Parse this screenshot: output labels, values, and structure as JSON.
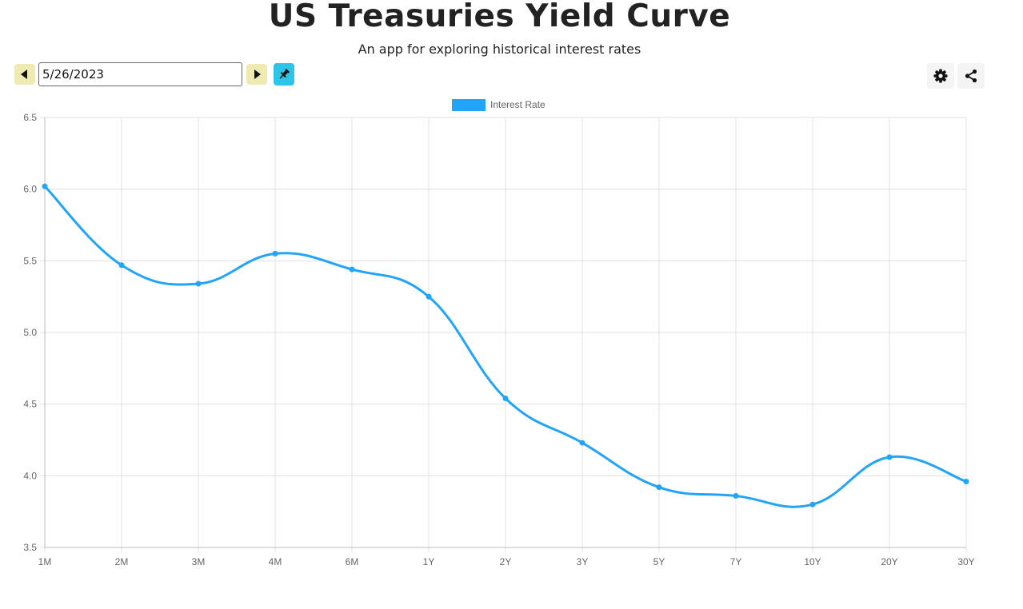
{
  "header": {
    "title": "US Treasuries Yield Curve",
    "subtitle": "An app for exploring historical interest rates"
  },
  "controls": {
    "date_value": "5/26/2023",
    "prev_icon": "triangle-left-icon",
    "next_icon": "triangle-right-icon",
    "pin_icon": "pin-icon",
    "settings_icon": "gear-icon",
    "share_icon": "share-icon",
    "pin_color": "#2dc4e8",
    "nav_color": "#efe9b2"
  },
  "chart_data": {
    "type": "line",
    "legend": {
      "position": "top-center",
      "labels": [
        "Interest Rate"
      ]
    },
    "categories": [
      "1M",
      "2M",
      "3M",
      "4M",
      "6M",
      "1Y",
      "2Y",
      "3Y",
      "5Y",
      "7Y",
      "10Y",
      "20Y",
      "30Y"
    ],
    "series": [
      {
        "name": "Interest Rate",
        "color": "#22a4f8",
        "values": [
          6.02,
          5.47,
          5.34,
          5.55,
          5.44,
          5.25,
          4.54,
          4.23,
          3.92,
          3.86,
          3.8,
          4.13,
          3.96
        ]
      }
    ],
    "ylim": [
      3.5,
      6.5
    ],
    "yticks": [
      "6.5",
      "6.0",
      "5.5",
      "5.0",
      "4.5",
      "4.0",
      "3.5"
    ],
    "grid": true
  }
}
